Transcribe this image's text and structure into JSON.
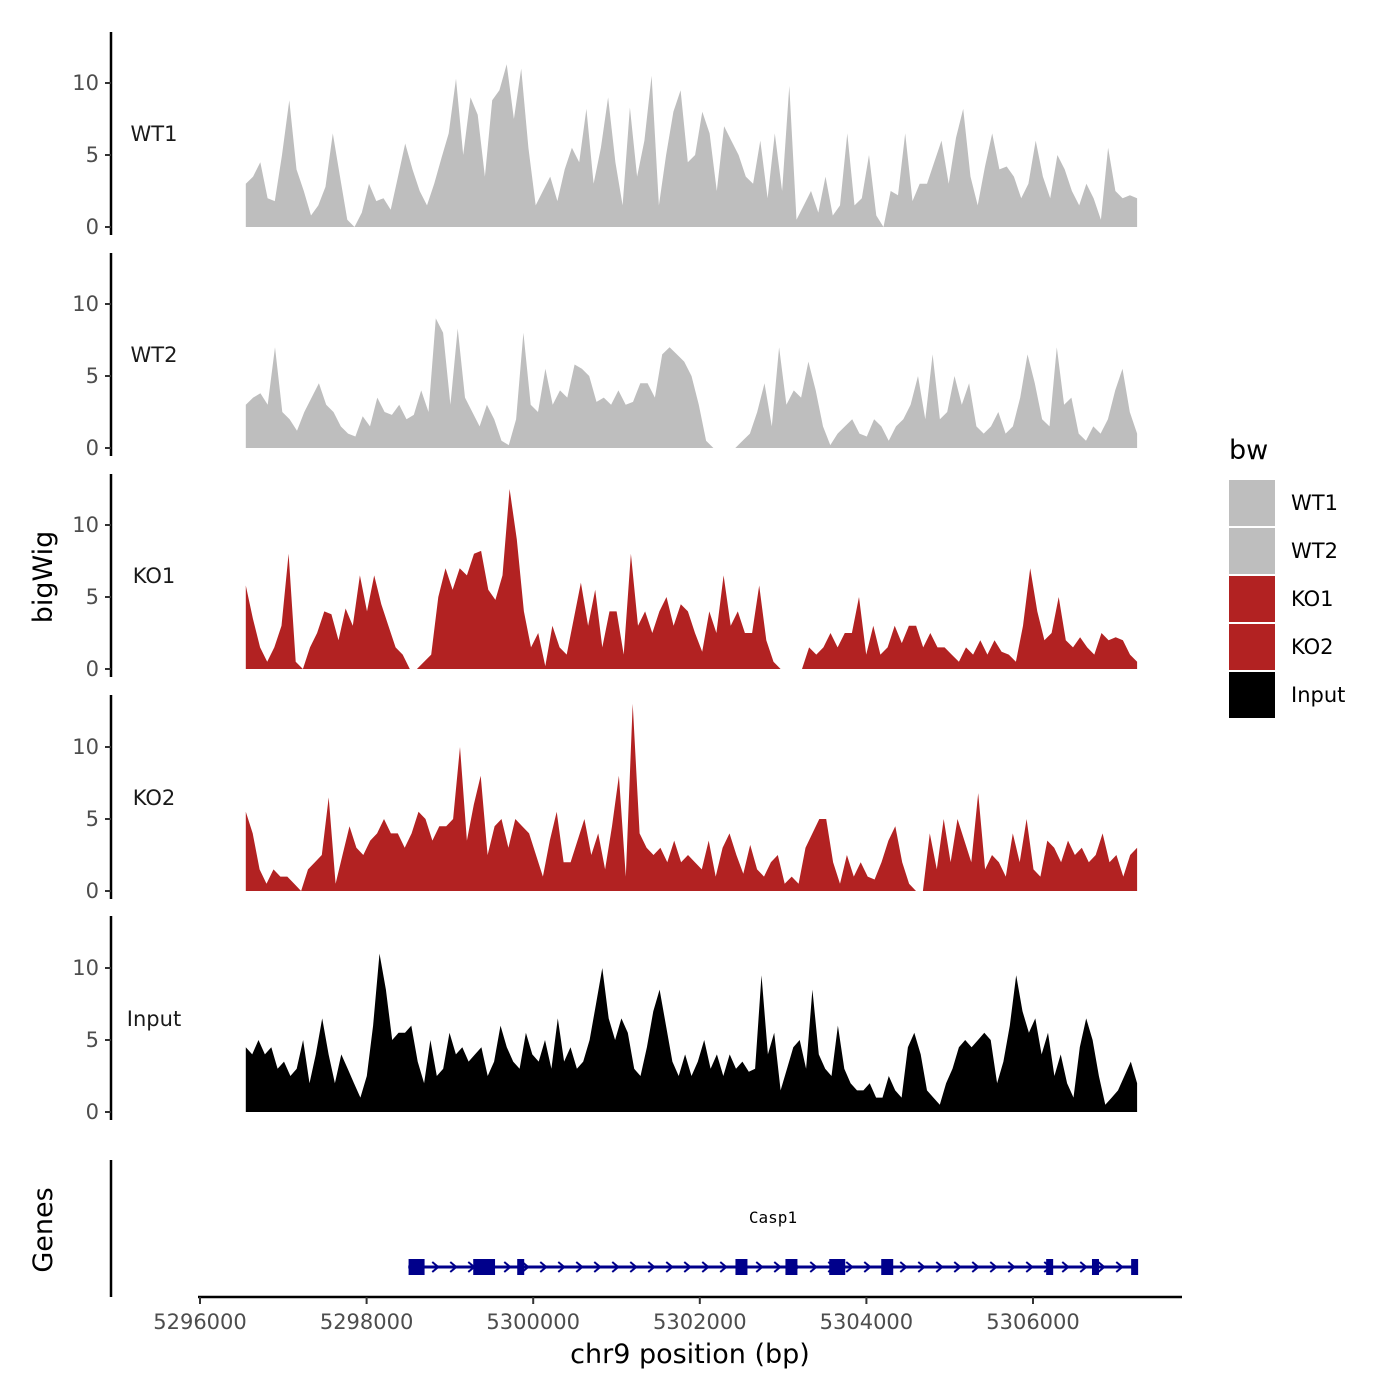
{
  "chart_data": {
    "type": "area",
    "title": "",
    "ylabel": "bigWig",
    "xlabel": "chr9 position (bp)",
    "xlim": [
      5296000,
      5307800
    ],
    "ylim": [
      0,
      13.5
    ],
    "y_ticks": [
      0,
      5,
      10
    ],
    "y_tick_labels": [
      "0",
      "5",
      "10"
    ],
    "x_ticks": [
      5296000,
      5298000,
      5300000,
      5302000,
      5304000,
      5306000
    ],
    "x_tick_labels": [
      "5296000",
      "5298000",
      "5300000",
      "5302000",
      "5304000",
      "5306000"
    ],
    "x_start": 5296550,
    "x_end": 5307250,
    "legend": {
      "title": "bw",
      "position": "right",
      "entries": [
        {
          "label": "WT1",
          "color": "#bebebe"
        },
        {
          "label": "WT2",
          "color": "#bebebe"
        },
        {
          "label": "KO1",
          "color": "#b22222"
        },
        {
          "label": "KO2",
          "color": "#b22222"
        },
        {
          "label": "Input",
          "color": "#000000"
        }
      ]
    },
    "series": [
      {
        "name": "WT1",
        "color": "#bebebe",
        "values": [
          3,
          3.5,
          4.5,
          2,
          1.8,
          5,
          8.8,
          4,
          2.5,
          0.8,
          1.5,
          2.8,
          6.5,
          3.5,
          0.5,
          0,
          1,
          3,
          1.8,
          2,
          1.2,
          3.5,
          5.8,
          4,
          2.5,
          1.5,
          3,
          4.8,
          6.5,
          10.3,
          5,
          9,
          7.8,
          3.5,
          8.8,
          9.5,
          11.3,
          7.5,
          11,
          5.5,
          1.5,
          2.5,
          3.5,
          1.8,
          4,
          5.5,
          4.5,
          8.2,
          3,
          5.5,
          9,
          4.5,
          1.5,
          8.3,
          3.5,
          6,
          10.5,
          1.5,
          5,
          8,
          9.5,
          4.5,
          5,
          8,
          6.5,
          2.5,
          7,
          6,
          5,
          3.5,
          3,
          6,
          2,
          6.5,
          2.5,
          9.8,
          0.5,
          1.5,
          2.5,
          1,
          3.5,
          0.8,
          1.5,
          6.5,
          1.5,
          2,
          5,
          0.8,
          0,
          2.5,
          2.2,
          6.5,
          1.8,
          3,
          3,
          4.5,
          6,
          3,
          6.2,
          8.2,
          3.5,
          1.5,
          4.2,
          6.5,
          4,
          4.2,
          3.5,
          2,
          3,
          6,
          3.5,
          2,
          5,
          4,
          2.5,
          1.5,
          3,
          2,
          0.5,
          5.5,
          2.5,
          2,
          2.2,
          2
        ]
      },
      {
        "name": "WT2",
        "color": "#bebebe",
        "values": [
          3,
          3.5,
          3.8,
          3,
          7,
          2.5,
          2,
          1.2,
          2.5,
          3.5,
          4.5,
          3,
          2.5,
          1.5,
          1,
          0.8,
          2.2,
          1.5,
          3.5,
          2.5,
          2.3,
          3,
          2,
          2.3,
          4,
          2.5,
          9,
          8,
          3,
          8.3,
          3.5,
          2.5,
          1.5,
          3,
          2,
          0.5,
          0.2,
          2,
          8,
          3,
          2.5,
          5.5,
          3,
          4,
          3.5,
          5.8,
          5.5,
          5,
          3.2,
          3.5,
          3,
          4,
          3,
          3.2,
          4.5,
          4.5,
          3.5,
          6.5,
          7,
          6.5,
          6,
          5,
          3,
          0.5,
          0,
          0,
          0,
          0,
          0.5,
          1,
          2.5,
          4.5,
          1.5,
          7,
          3,
          4,
          3.5,
          6,
          4,
          1.5,
          0.2,
          1,
          1.5,
          2,
          1,
          0.8,
          2,
          1.5,
          0.5,
          1.5,
          2,
          3,
          5,
          2,
          6.5,
          2,
          2.5,
          5,
          3,
          4.5,
          1.5,
          1,
          1.5,
          2.5,
          1,
          1.5,
          3.5,
          6.5,
          4.5,
          2,
          1.5,
          7,
          3,
          3.5,
          1,
          0.5,
          1.5,
          1,
          2,
          4,
          5.5,
          2.5,
          1
        ]
      },
      {
        "name": "KO1",
        "color": "#b22222",
        "values": [
          5.8,
          3.5,
          1.5,
          0.5,
          1.5,
          3,
          8,
          0.5,
          0,
          1.5,
          2.5,
          4,
          3.8,
          2,
          4.2,
          3,
          6.5,
          4,
          6.5,
          4.5,
          3,
          1.5,
          1,
          0,
          0,
          0.5,
          1,
          5,
          7,
          5.5,
          7,
          6.5,
          8,
          8.2,
          5.5,
          4.8,
          6.5,
          12.5,
          9,
          4,
          1.5,
          2.5,
          0.2,
          3,
          1.5,
          1,
          3.5,
          6,
          3,
          5.5,
          1.5,
          4,
          4,
          1,
          8,
          3,
          4,
          2.5,
          4,
          5,
          3,
          4.5,
          4,
          2.5,
          1.2,
          4,
          2.5,
          6.5,
          3,
          4,
          2.5,
          2.5,
          5.8,
          2,
          0.5,
          0,
          0,
          0,
          0,
          1.5,
          1,
          1.5,
          2.5,
          1.5,
          2.5,
          2.5,
          5,
          1,
          3,
          1,
          1.5,
          3,
          1.8,
          3,
          3,
          1.5,
          2.5,
          1.5,
          1.5,
          1,
          0.5,
          1.5,
          1,
          2,
          1,
          2,
          1.2,
          1,
          0.5,
          3,
          7,
          4,
          2,
          2.5,
          5,
          2,
          1.5,
          2.2,
          1.5,
          1,
          2.5,
          2,
          2.2,
          2,
          1,
          0.5
        ]
      },
      {
        "name": "KO2",
        "color": "#b22222",
        "values": [
          5.5,
          4,
          1.5,
          0.5,
          1.5,
          1,
          1,
          0.5,
          0,
          1.5,
          2,
          2.5,
          6.5,
          0.5,
          2.5,
          4.5,
          3,
          2.5,
          3.5,
          4,
          5,
          4,
          4,
          3,
          4,
          5.5,
          5,
          3.5,
          4.5,
          4.5,
          5,
          10,
          3.5,
          6,
          8,
          2.5,
          4.5,
          5,
          3,
          5,
          4.5,
          4,
          2.5,
          1,
          3.5,
          5.5,
          2,
          2,
          3.5,
          5,
          2.5,
          4,
          1.5,
          4.5,
          8,
          1,
          13,
          4,
          3,
          2.5,
          3,
          2,
          3.5,
          2,
          2.5,
          2,
          1.5,
          3.5,
          1,
          3,
          4,
          2.5,
          1.2,
          3.2,
          1.5,
          1,
          2,
          2.5,
          0.5,
          1,
          0.5,
          3,
          4,
          5,
          5,
          2,
          0.5,
          2.5,
          1,
          2,
          1,
          0.8,
          2,
          3.5,
          4.5,
          2,
          0.5,
          0,
          0,
          4,
          1.5,
          5,
          2,
          5,
          3.5,
          2,
          6.8,
          1.5,
          2.5,
          2,
          1,
          4,
          2,
          5,
          1.5,
          1,
          3.5,
          3,
          2,
          3.5,
          2.5,
          3,
          2,
          2.5,
          4,
          2,
          2.5,
          1,
          2.5,
          3
        ]
      },
      {
        "name": "Input",
        "color": "#000000",
        "values": [
          4.5,
          4,
          5,
          4,
          4.5,
          3,
          3.5,
          2.5,
          3,
          5,
          2,
          4,
          6.5,
          4,
          2,
          4,
          3,
          2,
          1,
          2.5,
          6,
          11,
          8.5,
          5,
          5.5,
          5.5,
          6,
          3.5,
          2,
          5,
          2.5,
          3,
          5.5,
          4,
          4.5,
          3.5,
          4,
          4.5,
          2.5,
          3.5,
          6,
          4.5,
          3.5,
          3,
          5.5,
          4,
          3.5,
          5,
          3,
          6.5,
          3.5,
          4.5,
          3,
          3.5,
          5,
          7.5,
          10,
          6.5,
          5,
          6.5,
          5.5,
          3,
          2.5,
          4.5,
          7,
          8.5,
          6,
          3.5,
          2.5,
          4,
          2.5,
          3.5,
          5,
          3,
          4,
          2.5,
          4,
          3,
          3.5,
          2.8,
          3,
          9.5,
          4,
          5.5,
          1.5,
          3,
          4.5,
          5,
          3,
          8.5,
          4,
          3,
          2.5,
          6,
          3,
          2,
          1.5,
          1.5,
          2,
          1,
          1,
          2.5,
          1.5,
          1,
          4.5,
          5.5,
          4,
          1.5,
          1,
          0.5,
          2,
          3,
          4.5,
          5,
          4.5,
          5,
          5.5,
          5,
          2,
          3.5,
          6,
          9.5,
          7,
          5.5,
          6.5,
          4,
          5.5,
          2.5,
          4,
          2,
          1,
          4.5,
          6.5,
          5,
          2.5,
          0.5,
          1,
          1.5,
          2.5,
          3.5,
          2
        ]
      }
    ],
    "genes": {
      "ylabel": "Genes",
      "label": "Casp1",
      "strand": "+",
      "start": 5298500,
      "end": 5307250,
      "color": "#00008b",
      "exons": [
        5298600,
        5299400,
        5299500,
        5299850,
        5302500,
        5303100,
        5303650,
        5304250,
        5306200,
        5306750,
        5307220
      ]
    }
  }
}
